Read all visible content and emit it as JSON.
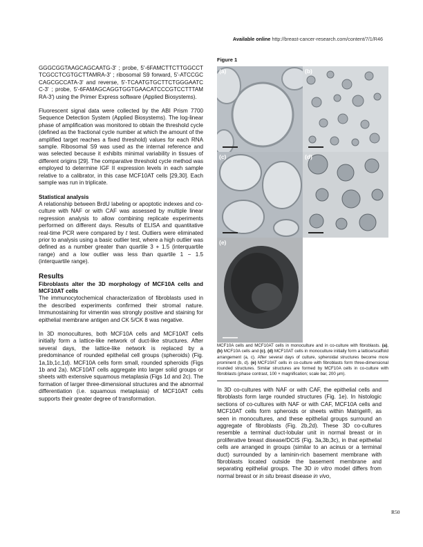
{
  "header": {
    "available_online_label": "Available online",
    "url": "http://breast-cancer-research.com/content/7/1/R46"
  },
  "left_column": {
    "para_primers": "GGGCGGTAAGCAGCAATG-3' ; probe, 5'-6FAMCTTCTTGGCCTTCGCCTCGTGCTTAMRA-3' ; ribosomal S9 forward, 5'-ATCCGCCAGCGCCATA-3' and reverse, 5'-TCAATGTGCTTCTGGGAATCC-3' ; probe, 5'-6FAMAGCAGGTGGTGAACATCCCGTCCTTTAMRA-3') using the Primer Express software (Applied Biosystems).",
    "para_fluorescent": "Fluorescent signal data were collected by the ABI Prism 7700 Sequence Detection System (Applied Biosystems). The log-linear phase of amplification was monitored to obtain the threshold cycle (defined as the fractional cycle number at which the amount of the amplified target reaches a fixed threshold) values for each RNA sample. Ribosomal S9 was used as the internal reference and was selected because it exhibits minimal variability in tissues of different origins [29]. The comparative threshold cycle method was employed to determine IGF II expression levels in each sample relative to a calibrator, in this case MCF10AT cells [29,30]. Each sample was run in triplicate.",
    "stat_heading": "Statistical analysis",
    "stat_para_a": "A relationship between BrdU labeling or apoptotic indexes and co-culture with NAF or with CAF was assessed by multiple linear regression analysis to allow combining replicate experiments performed on different days. Results of ELISA and quantitative real-time PCR were compared by ",
    "stat_para_t": "t",
    "stat_para_b": " test. Outliers were eliminated prior to analysis using a basic outlier test, where a high outlier was defined as a number greater than quartile 3 + 1.5 (interquartile range) and a low outlier was less than quartile 1 − 1.5 (interquartile range).",
    "results_heading": "Results",
    "fibro_heading": "Fibroblasts alter the 3D morphology of MCF10A cells and MCF10AT cells",
    "para_immuno": "The immunocytochemical characterization of fibroblasts used in the described experiments confirmed their stromal nature. Immunostaining for vimentin was strongly positive and staining for epithelial membrane antigen and CK 5/CK 8 was negative.",
    "para_3d": "In 3D monocultures, both MCF10A cells and MCF10AT cells initially form a lattice-like network of duct-like structures. After several days, the lattice-like network is replaced by a predominance of rounded epithelial cell groups (spheroids) (Fig. 1a,1b,1c,1d). MCF10A cells form small, rounded spheroids (Figs 1b and 2a). MCF10AT cells aggregate into larger solid groups or sheets with extensive squamous metaplasia (Figs 1d and 2c). The formation of larger three-dimensional structures and the abnormal differentiation (i.e. squamous metaplasia) of MCF10AT cells supports their greater degree of transformation."
  },
  "figure": {
    "title": "Figure 1",
    "panels": [
      "(a)",
      "(b)",
      "(c)",
      "(d)",
      "(e)"
    ],
    "caption_intro": "MCF10A cells and MCF10AT cells in monoculture and in co-culture with fibroblasts. ",
    "caption_ab": "(a)",
    "caption_t1": ", ",
    "caption_b": "(b)",
    "caption_t2": " MCF10A cells and ",
    "caption_c": "(c)",
    "caption_t3": ", ",
    "caption_d": "(d)",
    "caption_t4": " MCF10AT cells in monoculture initially form a lattice/scaffold arrangement (a, c). After several days of culture, spheroidal structures become more prominent (b, d). ",
    "caption_e": "(e)",
    "caption_t5": " MCF10AT cells in co-culture with fibroblasts form three-dimensional rounded structures. Similar structures are formed by MCF10A cells in co-culture with fibroblasts (phase contrast, 100 × magnification; scale bar, 200 μm)."
  },
  "right_column": {
    "para_coculture_a": "In 3D co-cultures with NAF or with CAF, the epithelial cells and fibroblasts form large rounded structures (Fig. 1e). In histologic sections of co-cultures with NAF or with CAF, MCF10A cells and MCF10AT cells form spheroids or sheets within Matrigel®, as seen in monocultures, and these epithelial groups surround an aggregate of fibroblasts (Fig. 2b,2d). These 3D co-cultures resemble a terminal duct-lobular unit in normal breast or in proliferative breast disease/DCIS (Fig. 3a,3b,3c), in that epithelial cells are arranged in groups (similar to an acinus or a terminal duct) surrounded by a laminin-rich basement membrane with fibroblasts located outside the basement membrane and separating epithelial groups. The 3D ",
    "in_vitro": "in vitro",
    "para_coculture_b": " model differs from normal breast or ",
    "in_situ": "in situ",
    "para_coculture_c": " breast disease ",
    "in_vivo": "in vivo",
    "para_coculture_d": ","
  },
  "page_number": "R50"
}
